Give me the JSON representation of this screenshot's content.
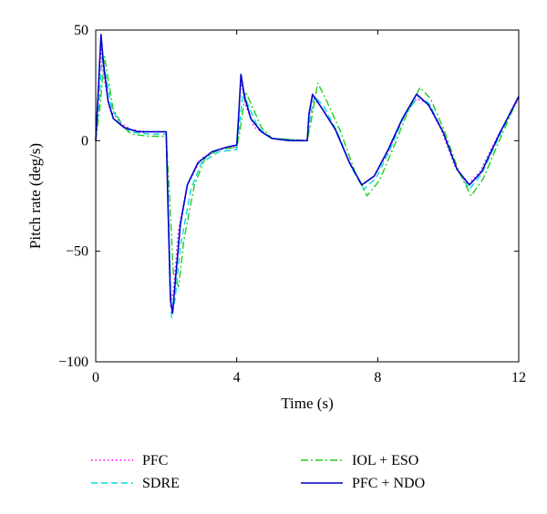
{
  "chart_data": {
    "type": "line",
    "title": "",
    "xlabel": "Time (s)",
    "ylabel": "Pitch rate (deg/s)",
    "xlim": [
      0,
      12
    ],
    "ylim": [
      -100,
      50
    ],
    "xticks": [
      0,
      4,
      8,
      12
    ],
    "yticks": [
      50,
      0,
      -50,
      -100
    ],
    "xtick_labels": [
      "0",
      "4",
      "8",
      "12"
    ],
    "ytick_labels": [
      "50",
      "0",
      "−50",
      "−100"
    ],
    "grid": false,
    "legend_position": "bottom",
    "series": [
      {
        "name": "PFC",
        "color": "#ff00ff",
        "style": "dotted",
        "points": [
          [
            0,
            0
          ],
          [
            0.08,
            20
          ],
          [
            0.15,
            42
          ],
          [
            0.22,
            30
          ],
          [
            0.4,
            14
          ],
          [
            0.7,
            8
          ],
          [
            1.0,
            5
          ],
          [
            1.5,
            4
          ],
          [
            2.0,
            4
          ],
          [
            2.05,
            -30
          ],
          [
            2.12,
            -75
          ],
          [
            2.2,
            -68
          ],
          [
            2.35,
            -40
          ],
          [
            2.6,
            -20
          ],
          [
            3.0,
            -8
          ],
          [
            3.5,
            -4
          ],
          [
            4.0,
            -3
          ],
          [
            4.05,
            10
          ],
          [
            4.12,
            27
          ],
          [
            4.25,
            16
          ],
          [
            4.5,
            6
          ],
          [
            5.0,
            1
          ],
          [
            6.0,
            0
          ],
          [
            6.05,
            10
          ],
          [
            6.15,
            20
          ],
          [
            6.4,
            15
          ],
          [
            6.8,
            5
          ],
          [
            7.2,
            -10
          ],
          [
            7.55,
            -20
          ],
          [
            7.9,
            -16
          ],
          [
            8.3,
            -5
          ],
          [
            8.7,
            10
          ],
          [
            9.1,
            19
          ],
          [
            9.4,
            17
          ],
          [
            9.8,
            5
          ],
          [
            10.2,
            -12
          ],
          [
            10.55,
            -20
          ],
          [
            10.9,
            -14
          ],
          [
            11.4,
            2
          ],
          [
            12,
            19
          ]
        ]
      },
      {
        "name": "SDRE",
        "color": "#00dddd",
        "style": "dashed",
        "points": [
          [
            0,
            0
          ],
          [
            0.1,
            18
          ],
          [
            0.18,
            38
          ],
          [
            0.28,
            30
          ],
          [
            0.45,
            15
          ],
          [
            0.7,
            7
          ],
          [
            1.0,
            4
          ],
          [
            1.5,
            3
          ],
          [
            2.0,
            3
          ],
          [
            2.05,
            -25
          ],
          [
            2.15,
            -80
          ],
          [
            2.25,
            -72
          ],
          [
            2.4,
            -48
          ],
          [
            2.7,
            -22
          ],
          [
            3.0,
            -10
          ],
          [
            3.5,
            -5
          ],
          [
            4.0,
            -4
          ],
          [
            4.08,
            8
          ],
          [
            4.18,
            22
          ],
          [
            4.3,
            17
          ],
          [
            4.6,
            6
          ],
          [
            5.0,
            1
          ],
          [
            6.0,
            0
          ],
          [
            6.08,
            10
          ],
          [
            6.2,
            20
          ],
          [
            6.45,
            16
          ],
          [
            6.85,
            4
          ],
          [
            7.25,
            -12
          ],
          [
            7.6,
            -22
          ],
          [
            7.95,
            -17
          ],
          [
            8.35,
            -4
          ],
          [
            8.75,
            11
          ],
          [
            9.15,
            20
          ],
          [
            9.45,
            17
          ],
          [
            9.85,
            4
          ],
          [
            10.25,
            -13
          ],
          [
            10.6,
            -22
          ],
          [
            10.95,
            -15
          ],
          [
            11.45,
            2
          ],
          [
            12,
            20
          ]
        ]
      },
      {
        "name": "IOL + ESO",
        "color": "#22cc22",
        "style": "dashdot",
        "points": [
          [
            0,
            0
          ],
          [
            0.12,
            15
          ],
          [
            0.25,
            38
          ],
          [
            0.35,
            28
          ],
          [
            0.5,
            14
          ],
          [
            0.8,
            6
          ],
          [
            1.0,
            3
          ],
          [
            1.5,
            2
          ],
          [
            2.0,
            2
          ],
          [
            2.08,
            -20
          ],
          [
            2.2,
            -60
          ],
          [
            2.35,
            -66
          ],
          [
            2.5,
            -45
          ],
          [
            2.8,
            -20
          ],
          [
            3.1,
            -8
          ],
          [
            3.5,
            -4
          ],
          [
            4.0,
            -3
          ],
          [
            4.1,
            5
          ],
          [
            4.25,
            22
          ],
          [
            4.4,
            17
          ],
          [
            4.7,
            6
          ],
          [
            5.0,
            1
          ],
          [
            6.0,
            0
          ],
          [
            6.1,
            8
          ],
          [
            6.3,
            26
          ],
          [
            6.55,
            18
          ],
          [
            6.95,
            4
          ],
          [
            7.35,
            -14
          ],
          [
            7.7,
            -25
          ],
          [
            8.05,
            -18
          ],
          [
            8.45,
            -3
          ],
          [
            8.85,
            13
          ],
          [
            9.2,
            24
          ],
          [
            9.5,
            19
          ],
          [
            9.9,
            4
          ],
          [
            10.3,
            -14
          ],
          [
            10.65,
            -25
          ],
          [
            11.0,
            -17
          ],
          [
            11.5,
            2
          ],
          [
            12,
            20
          ]
        ]
      },
      {
        "name": "PFC + NDO",
        "color": "#0000cc",
        "style": "solid",
        "points": [
          [
            0,
            0
          ],
          [
            0.08,
            25
          ],
          [
            0.15,
            48
          ],
          [
            0.22,
            35
          ],
          [
            0.35,
            18
          ],
          [
            0.5,
            10
          ],
          [
            0.8,
            6
          ],
          [
            1.2,
            4
          ],
          [
            1.6,
            4
          ],
          [
            2.0,
            4
          ],
          [
            2.05,
            -30
          ],
          [
            2.12,
            -72
          ],
          [
            2.18,
            -78
          ],
          [
            2.25,
            -65
          ],
          [
            2.4,
            -38
          ],
          [
            2.6,
            -20
          ],
          [
            2.9,
            -10
          ],
          [
            3.3,
            -5
          ],
          [
            3.7,
            -3
          ],
          [
            4.0,
            -2
          ],
          [
            4.05,
            10
          ],
          [
            4.12,
            30
          ],
          [
            4.22,
            20
          ],
          [
            4.4,
            10
          ],
          [
            4.7,
            4
          ],
          [
            5.0,
            1
          ],
          [
            5.5,
            0
          ],
          [
            6.0,
            0
          ],
          [
            6.05,
            12
          ],
          [
            6.15,
            21
          ],
          [
            6.4,
            15
          ],
          [
            6.8,
            5
          ],
          [
            7.2,
            -10
          ],
          [
            7.55,
            -20
          ],
          [
            7.9,
            -16
          ],
          [
            8.3,
            -4
          ],
          [
            8.7,
            10
          ],
          [
            9.1,
            21
          ],
          [
            9.45,
            16
          ],
          [
            9.85,
            4
          ],
          [
            10.25,
            -13
          ],
          [
            10.6,
            -20
          ],
          [
            10.95,
            -14
          ],
          [
            11.45,
            3
          ],
          [
            12,
            20
          ]
        ]
      }
    ]
  }
}
